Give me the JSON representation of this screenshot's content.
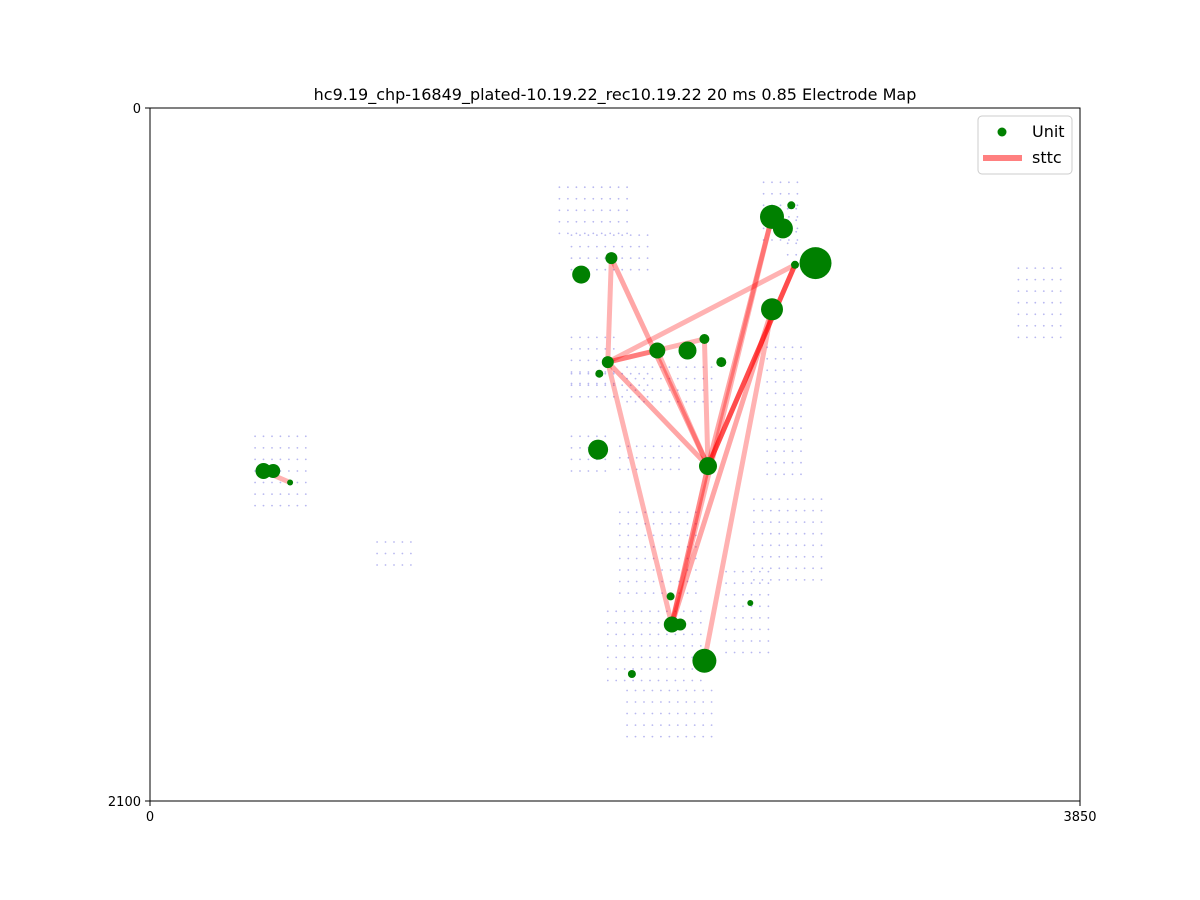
{
  "chart_data": {
    "type": "scatter",
    "title": "hc9.19_chp-16849_plated-10.19.22_rec10.19.22 20 ms 0.85 Electrode Map",
    "xlabel": "",
    "ylabel": "",
    "xlim": [
      0,
      3850
    ],
    "ylim": [
      2100,
      0
    ],
    "y_inverted": true,
    "x_ticks": [
      "0",
      "3850"
    ],
    "y_ticks": [
      "0",
      "2100"
    ],
    "grid": false,
    "legend": {
      "placement": "top-right",
      "entries": [
        {
          "label": "Unit",
          "marker": "dot",
          "color": "#008000"
        },
        {
          "label": "sttc",
          "marker": "line",
          "color": "#ff8080"
        }
      ]
    },
    "colors": {
      "unit": "#008000",
      "sttc": "#ff0000",
      "electrode": "#b8b8f0"
    },
    "electrode_blocks": [
      {
        "x0": 435,
        "x1": 655,
        "y0": 995,
        "y1": 1205
      },
      {
        "x0": 940,
        "x1": 1090,
        "y0": 1315,
        "y1": 1415
      },
      {
        "x0": 1695,
        "x1": 2000,
        "y0": 240,
        "y1": 410
      },
      {
        "x0": 1745,
        "x1": 2090,
        "y0": 385,
        "y1": 505
      },
      {
        "x0": 1745,
        "x1": 1950,
        "y0": 695,
        "y1": 855
      },
      {
        "x0": 1745,
        "x1": 2060,
        "y0": 805,
        "y1": 905
      },
      {
        "x0": 1745,
        "x1": 1900,
        "y0": 995,
        "y1": 1105
      },
      {
        "x0": 1975,
        "x1": 2340,
        "y0": 785,
        "y1": 905
      },
      {
        "x0": 1945,
        "x1": 2200,
        "y0": 1025,
        "y1": 1115
      },
      {
        "x0": 2540,
        "x1": 2710,
        "y0": 225,
        "y1": 405
      },
      {
        "x0": 2640,
        "x1": 2690,
        "y0": 305,
        "y1": 455
      },
      {
        "x0": 2555,
        "x1": 2700,
        "y0": 725,
        "y1": 1115
      },
      {
        "x0": 1945,
        "x1": 2270,
        "y0": 1225,
        "y1": 1475
      },
      {
        "x0": 2500,
        "x1": 2790,
        "y0": 1185,
        "y1": 1435
      },
      {
        "x0": 2385,
        "x1": 2560,
        "y0": 1405,
        "y1": 1665
      },
      {
        "x0": 1895,
        "x1": 2290,
        "y0": 1525,
        "y1": 1755
      },
      {
        "x0": 1975,
        "x1": 2340,
        "y0": 1765,
        "y1": 1905
      },
      {
        "x0": 3595,
        "x1": 3780,
        "y0": 485,
        "y1": 705
      }
    ],
    "units": [
      {
        "x": 470,
        "y": 1100,
        "size": 8
      },
      {
        "x": 510,
        "y": 1100,
        "size": 7
      },
      {
        "x": 580,
        "y": 1135,
        "size": 3
      },
      {
        "x": 1785,
        "y": 505,
        "size": 9
      },
      {
        "x": 1910,
        "y": 455,
        "size": 6
      },
      {
        "x": 1895,
        "y": 770,
        "size": 6
      },
      {
        "x": 1860,
        "y": 805,
        "size": 4
      },
      {
        "x": 2100,
        "y": 735,
        "size": 8
      },
      {
        "x": 2225,
        "y": 735,
        "size": 9
      },
      {
        "x": 2295,
        "y": 700,
        "size": 5
      },
      {
        "x": 2365,
        "y": 770,
        "size": 5
      },
      {
        "x": 1855,
        "y": 1035,
        "size": 10
      },
      {
        "x": 2310,
        "y": 1085,
        "size": 9
      },
      {
        "x": 2575,
        "y": 330,
        "size": 12
      },
      {
        "x": 2620,
        "y": 365,
        "size": 10
      },
      {
        "x": 2655,
        "y": 295,
        "size": 4
      },
      {
        "x": 2670,
        "y": 475,
        "size": 4
      },
      {
        "x": 2755,
        "y": 470,
        "size": 16
      },
      {
        "x": 2575,
        "y": 610,
        "size": 11
      },
      {
        "x": 2155,
        "y": 1480,
        "size": 4
      },
      {
        "x": 2160,
        "y": 1565,
        "size": 8
      },
      {
        "x": 2195,
        "y": 1565,
        "size": 6
      },
      {
        "x": 2485,
        "y": 1500,
        "size": 3
      },
      {
        "x": 2295,
        "y": 1675,
        "size": 12
      },
      {
        "x": 1995,
        "y": 1715,
        "size": 4
      }
    ],
    "sttc_edges": [
      {
        "x1": 470,
        "y1": 1100,
        "x2": 580,
        "y2": 1135,
        "strength": 0.3
      },
      {
        "x1": 1910,
        "y1": 455,
        "x2": 1895,
        "y2": 770,
        "strength": 0.3
      },
      {
        "x1": 1910,
        "y1": 455,
        "x2": 2310,
        "y2": 1085,
        "strength": 0.35
      },
      {
        "x1": 1895,
        "y1": 770,
        "x2": 2100,
        "y2": 735,
        "strength": 0.3
      },
      {
        "x1": 1895,
        "y1": 770,
        "x2": 2295,
        "y2": 700,
        "strength": 0.3
      },
      {
        "x1": 1895,
        "y1": 770,
        "x2": 2670,
        "y2": 475,
        "strength": 0.3
      },
      {
        "x1": 1895,
        "y1": 770,
        "x2": 2310,
        "y2": 1085,
        "strength": 0.35
      },
      {
        "x1": 1895,
        "y1": 770,
        "x2": 2160,
        "y2": 1565,
        "strength": 0.3
      },
      {
        "x1": 2100,
        "y1": 735,
        "x2": 2310,
        "y2": 1085,
        "strength": 0.3
      },
      {
        "x1": 2295,
        "y1": 700,
        "x2": 2310,
        "y2": 1085,
        "strength": 0.3
      },
      {
        "x1": 2575,
        "y1": 330,
        "x2": 2310,
        "y2": 1085,
        "strength": 0.35
      },
      {
        "x1": 2575,
        "y1": 330,
        "x2": 2160,
        "y2": 1565,
        "strength": 0.3
      },
      {
        "x1": 2670,
        "y1": 475,
        "x2": 2310,
        "y2": 1085,
        "strength": 0.7
      },
      {
        "x1": 2575,
        "y1": 610,
        "x2": 2160,
        "y2": 1565,
        "strength": 0.35
      },
      {
        "x1": 2575,
        "y1": 610,
        "x2": 2295,
        "y2": 1675,
        "strength": 0.3
      },
      {
        "x1": 2310,
        "y1": 1085,
        "x2": 2160,
        "y2": 1565,
        "strength": 0.45
      }
    ]
  }
}
